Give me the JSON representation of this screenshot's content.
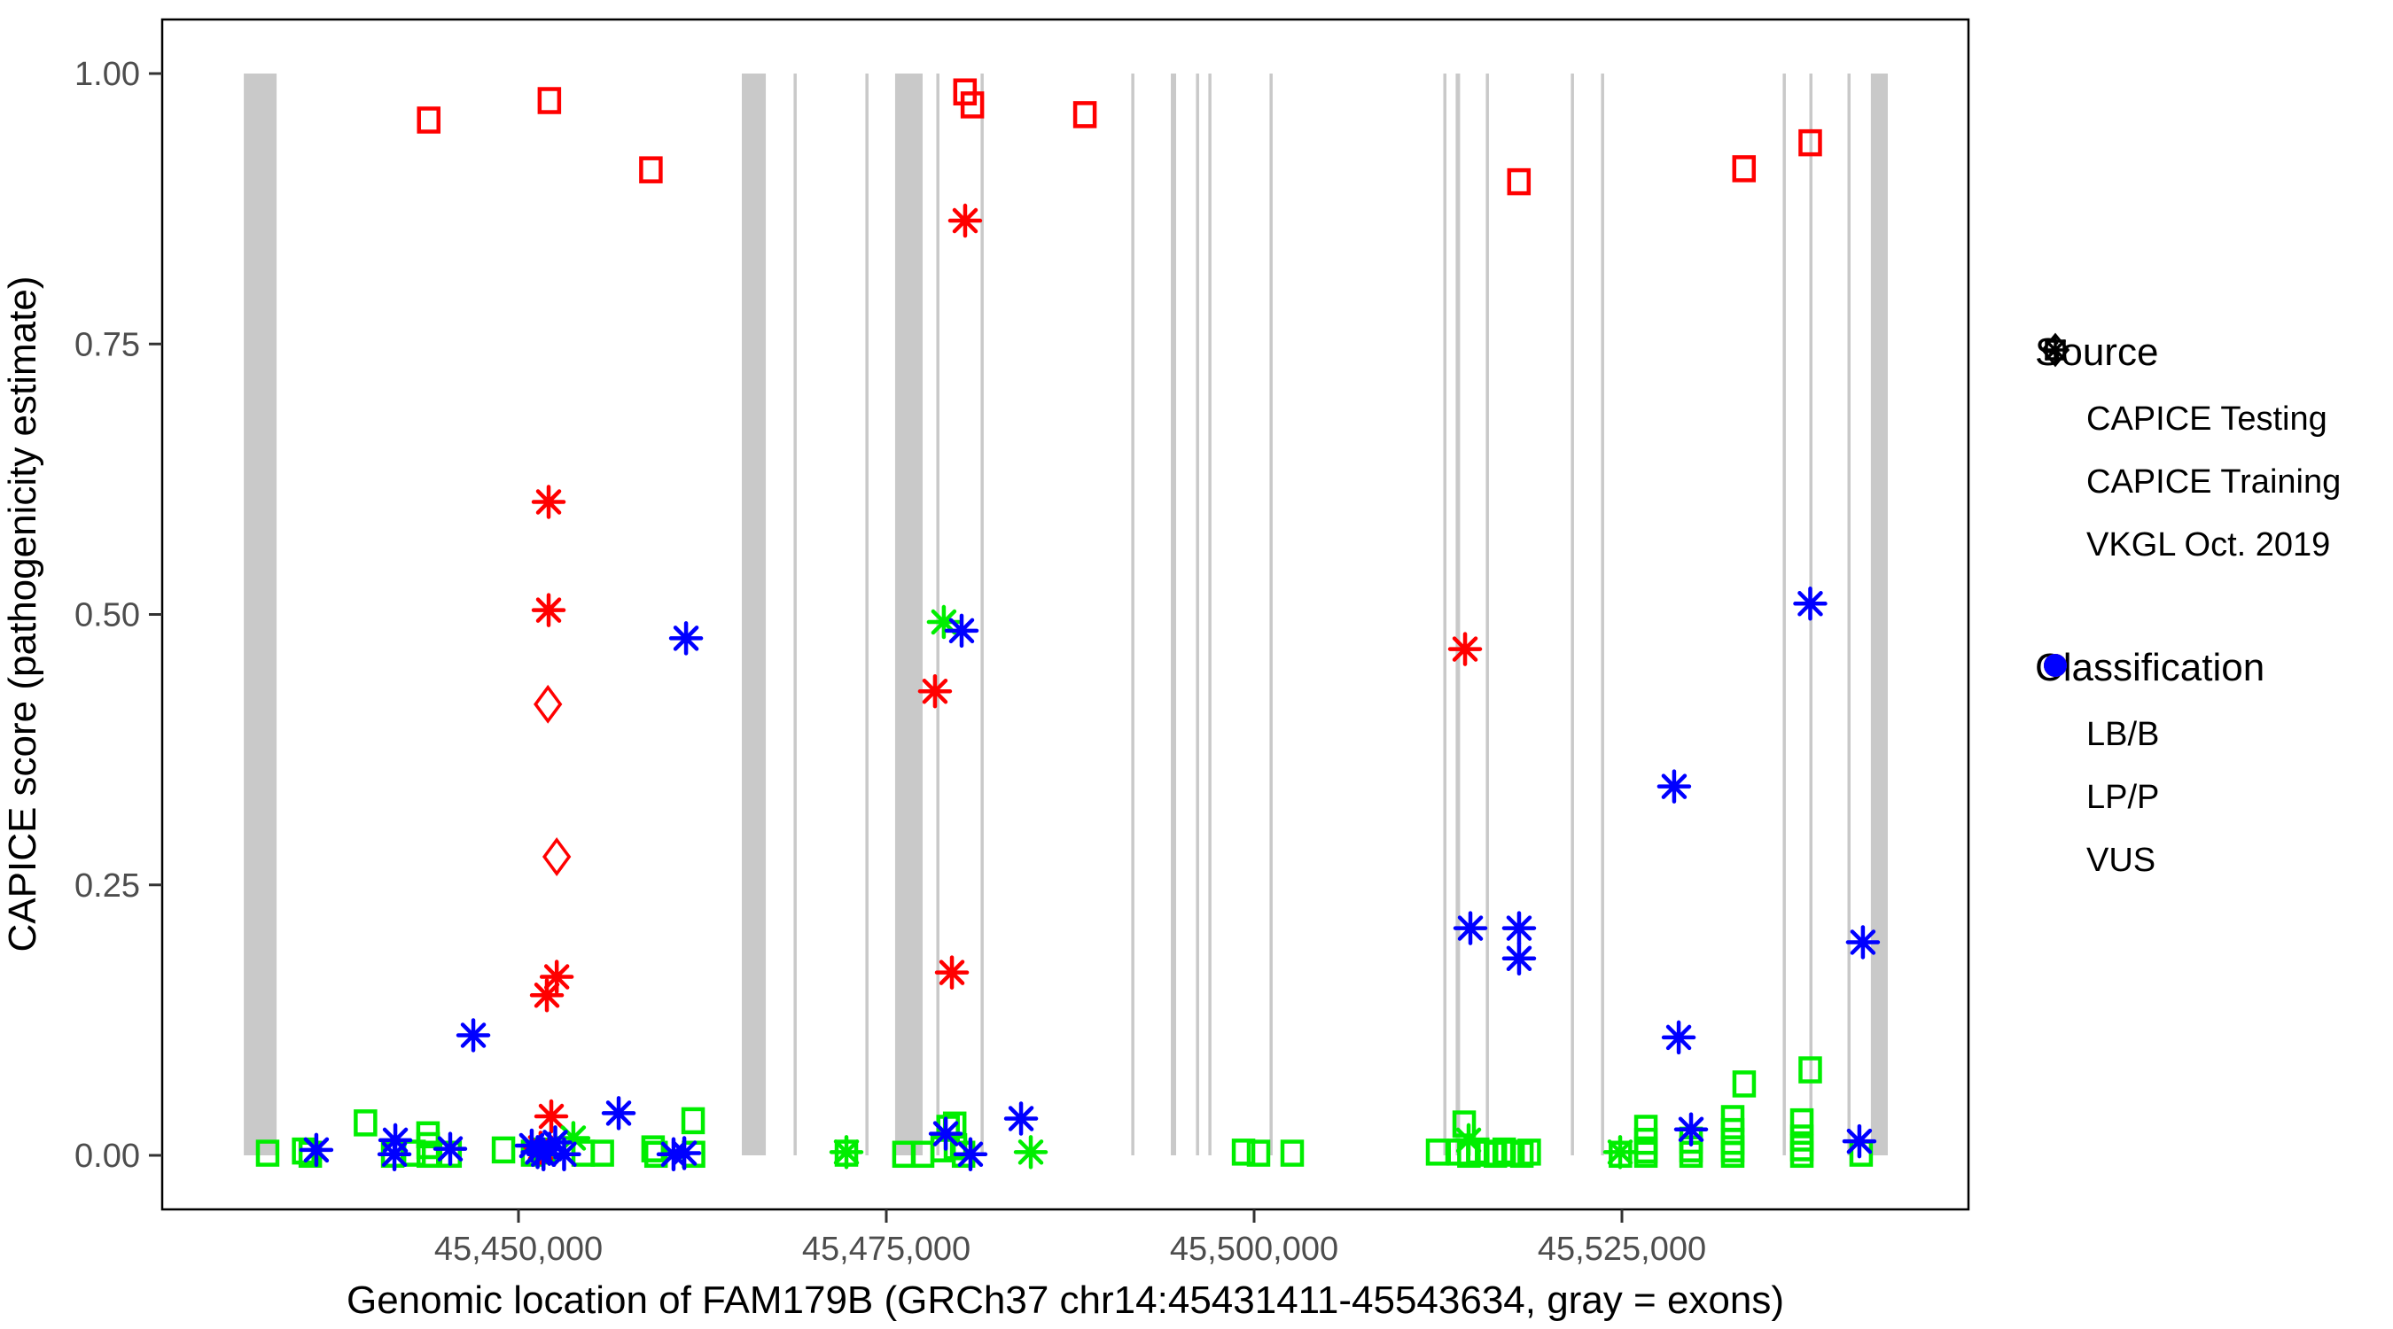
{
  "figure": {
    "x_axis": {
      "title": "Genomic location of FAM179B (GRCh37 chr14:45431411-45543634, gray = exons)",
      "ticks": [
        {
          "bp": 45450000,
          "label": "45,450,000"
        },
        {
          "bp": 45475000,
          "label": "45,475,000"
        },
        {
          "bp": 45500000,
          "label": "45,500,000"
        },
        {
          "bp": 45525000,
          "label": "45,525,000"
        }
      ],
      "range_bp": [
        45425800,
        45548600
      ]
    },
    "y_axis": {
      "title": "CAPICE score (pathogenicity estimate)",
      "ticks": [
        {
          "v": 0.0,
          "label": "0.00"
        },
        {
          "v": 0.25,
          "label": "0.25"
        },
        {
          "v": 0.5,
          "label": "0.50"
        },
        {
          "v": 0.75,
          "label": "0.75"
        },
        {
          "v": 1.0,
          "label": "1.00"
        }
      ],
      "range": [
        -0.05,
        1.05
      ]
    },
    "legend": {
      "source": {
        "title": "Source",
        "items": [
          {
            "label": "CAPICE Testing",
            "marker": "diamond-icon"
          },
          {
            "label": "CAPICE Training",
            "marker": "square-icon"
          },
          {
            "label": "VKGL Oct. 2019",
            "marker": "asterisk-icon"
          }
        ]
      },
      "classification": {
        "title": "Classification",
        "items": [
          {
            "label": "LB/B",
            "color": "#00EE00"
          },
          {
            "label": "LP/P",
            "color": "#FF0000"
          },
          {
            "label": "VUS",
            "color": "#0000FF"
          }
        ]
      }
    },
    "colors": {
      "LB/B": "#00EE00",
      "LP/P": "#FF0000",
      "VUS": "#0000FF",
      "exon": "#C9C9C9",
      "panel_border": "#000000",
      "tick_text": "#4D4D4D"
    }
  },
  "chart_data": {
    "type": "scatter",
    "title": "",
    "xlabel": "Genomic location of FAM179B (GRCh37 chr14:45431411-45543634, gray = exons)",
    "ylabel": "CAPICE score (pathogenicity estimate)",
    "x_range_bp": [
      45425800,
      45548600
    ],
    "y_range": [
      -0.05,
      1.05
    ],
    "grid": false,
    "legend_position": "right",
    "exons_bp": [
      [
        45431330,
        45433560
      ],
      [
        45465180,
        45466810
      ],
      [
        45468700,
        45468890
      ],
      [
        45473580,
        45473770
      ],
      [
        45475600,
        45477470
      ],
      [
        45478400,
        45478590
      ],
      [
        45481410,
        45481600
      ],
      [
        45491650,
        45491840
      ],
      [
        45494340,
        45494700
      ],
      [
        45496050,
        45496240
      ],
      [
        45496890,
        45497080
      ],
      [
        45501050,
        45501240
      ],
      [
        45512860,
        45513040
      ],
      [
        45513700,
        45514000
      ],
      [
        45515750,
        45515930
      ],
      [
        45521530,
        45521720
      ],
      [
        45523580,
        45523770
      ],
      [
        45535930,
        45536110
      ],
      [
        45537740,
        45537920
      ],
      [
        45540330,
        45540510
      ],
      [
        45541920,
        45543070
      ]
    ],
    "points": [
      {
        "source": "CAPICE Testing",
        "classification": "LP/P",
        "bp": 45452000,
        "score": 0.417
      },
      {
        "source": "CAPICE Testing",
        "classification": "LP/P",
        "bp": 45452600,
        "score": 0.276
      },
      {
        "source": "CAPICE Training",
        "classification": "LP/P",
        "bp": 45443900,
        "score": 0.957
      },
      {
        "source": "CAPICE Training",
        "classification": "LP/P",
        "bp": 45452100,
        "score": 0.975
      },
      {
        "source": "CAPICE Training",
        "classification": "LP/P",
        "bp": 45459000,
        "score": 0.911
      },
      {
        "source": "CAPICE Training",
        "classification": "LP/P",
        "bp": 45480350,
        "score": 0.983
      },
      {
        "source": "CAPICE Training",
        "classification": "LP/P",
        "bp": 45480850,
        "score": 0.971
      },
      {
        "source": "CAPICE Training",
        "classification": "LP/P",
        "bp": 45488500,
        "score": 0.962
      },
      {
        "source": "CAPICE Training",
        "classification": "LP/P",
        "bp": 45518000,
        "score": 0.9
      },
      {
        "source": "CAPICE Training",
        "classification": "LP/P",
        "bp": 45533300,
        "score": 0.912
      },
      {
        "source": "CAPICE Training",
        "classification": "LP/P",
        "bp": 45537800,
        "score": 0.936
      },
      {
        "source": "CAPICE Training",
        "classification": "LB/B",
        "bp": 45432950,
        "score": 0.002
      },
      {
        "source": "CAPICE Training",
        "classification": "LB/B",
        "bp": 45435400,
        "score": 0.004
      },
      {
        "source": "CAPICE Training",
        "classification": "LB/B",
        "bp": 45435850,
        "score": 0.001
      },
      {
        "source": "CAPICE Training",
        "classification": "LB/B",
        "bp": 45439600,
        "score": 0.03
      },
      {
        "source": "CAPICE Training",
        "classification": "LB/B",
        "bp": 45441450,
        "score": 0.001
      },
      {
        "source": "CAPICE Training",
        "classification": "LB/B",
        "bp": 45442900,
        "score": 0.002
      },
      {
        "source": "CAPICE Training",
        "classification": "LB/B",
        "bp": 45443850,
        "score": 0.019
      },
      {
        "source": "CAPICE Training",
        "classification": "LB/B",
        "bp": 45443860,
        "score": 0.009
      },
      {
        "source": "CAPICE Training",
        "classification": "LB/B",
        "bp": 45443870,
        "score": 0.001
      },
      {
        "source": "CAPICE Training",
        "classification": "LB/B",
        "bp": 45445350,
        "score": 0.001
      },
      {
        "source": "CAPICE Training",
        "classification": "LB/B",
        "bp": 45448980,
        "score": 0.005
      },
      {
        "source": "CAPICE Training",
        "classification": "LB/B",
        "bp": 45450960,
        "score": 0.002
      },
      {
        "source": "CAPICE Training",
        "classification": "LB/B",
        "bp": 45451750,
        "score": 0.004
      },
      {
        "source": "CAPICE Training",
        "classification": "LB/B",
        "bp": 45454400,
        "score": 0.002
      },
      {
        "source": "CAPICE Training",
        "classification": "LB/B",
        "bp": 45455700,
        "score": 0.002
      },
      {
        "source": "CAPICE Training",
        "classification": "LB/B",
        "bp": 45459150,
        "score": 0.006
      },
      {
        "source": "CAPICE Training",
        "classification": "LB/B",
        "bp": 45459350,
        "score": 0.001
      },
      {
        "source": "CAPICE Training",
        "classification": "LB/B",
        "bp": 45461870,
        "score": 0.032
      },
      {
        "source": "CAPICE Training",
        "classification": "LB/B",
        "bp": 45461900,
        "score": 0.001
      },
      {
        "source": "CAPICE Training",
        "classification": "LB/B",
        "bp": 45472290,
        "score": 0.002
      },
      {
        "source": "CAPICE Training",
        "classification": "LB/B",
        "bp": 45476200,
        "score": 0.001
      },
      {
        "source": "CAPICE Training",
        "classification": "LB/B",
        "bp": 45477470,
        "score": 0.001
      },
      {
        "source": "CAPICE Training",
        "classification": "LB/B",
        "bp": 45478800,
        "score": 0.006
      },
      {
        "source": "CAPICE Training",
        "classification": "LB/B",
        "bp": 45479200,
        "score": 0.025
      },
      {
        "source": "CAPICE Training",
        "classification": "LB/B",
        "bp": 45479650,
        "score": 0.028
      },
      {
        "source": "CAPICE Training",
        "classification": "LB/B",
        "bp": 45479700,
        "score": 0.008
      },
      {
        "source": "CAPICE Training",
        "classification": "LB/B",
        "bp": 45480250,
        "score": 0.001
      },
      {
        "source": "CAPICE Training",
        "classification": "LB/B",
        "bp": 45499280,
        "score": 0.003
      },
      {
        "source": "CAPICE Training",
        "classification": "LB/B",
        "bp": 45500300,
        "score": 0.002
      },
      {
        "source": "CAPICE Training",
        "classification": "LB/B",
        "bp": 45502590,
        "score": 0.002
      },
      {
        "source": "CAPICE Training",
        "classification": "LB/B",
        "bp": 45512470,
        "score": 0.003
      },
      {
        "source": "CAPICE Training",
        "classification": "LB/B",
        "bp": 45513900,
        "score": 0.003
      },
      {
        "source": "CAPICE Training",
        "classification": "LB/B",
        "bp": 45514280,
        "score": 0.029
      },
      {
        "source": "CAPICE Training",
        "classification": "LB/B",
        "bp": 45514600,
        "score": 0.001
      },
      {
        "source": "CAPICE Training",
        "classification": "LB/B",
        "bp": 45515200,
        "score": 0.004
      },
      {
        "source": "CAPICE Training",
        "classification": "LB/B",
        "bp": 45515800,
        "score": 0.002
      },
      {
        "source": "CAPICE Training",
        "classification": "LB/B",
        "bp": 45516400,
        "score": 0.001
      },
      {
        "source": "CAPICE Training",
        "classification": "LB/B",
        "bp": 45517000,
        "score": 0.004
      },
      {
        "source": "CAPICE Training",
        "classification": "LB/B",
        "bp": 45517600,
        "score": 0.002
      },
      {
        "source": "CAPICE Training",
        "classification": "LB/B",
        "bp": 45518200,
        "score": 0.001
      },
      {
        "source": "CAPICE Training",
        "classification": "LB/B",
        "bp": 45518700,
        "score": 0.003
      },
      {
        "source": "CAPICE Training",
        "classification": "LB/B",
        "bp": 45524900,
        "score": 0.001
      },
      {
        "source": "CAPICE Training",
        "classification": "LB/B",
        "bp": 45526630,
        "score": 0.025
      },
      {
        "source": "CAPICE Training",
        "classification": "LB/B",
        "bp": 45526630,
        "score": 0.013
      },
      {
        "source": "CAPICE Training",
        "classification": "LB/B",
        "bp": 45526630,
        "score": 0.005
      },
      {
        "source": "CAPICE Training",
        "classification": "LB/B",
        "bp": 45526630,
        "score": 0.001
      },
      {
        "source": "CAPICE Training",
        "classification": "LB/B",
        "bp": 45529700,
        "score": 0.014
      },
      {
        "source": "CAPICE Training",
        "classification": "LB/B",
        "bp": 45529700,
        "score": 0.006
      },
      {
        "source": "CAPICE Training",
        "classification": "LB/B",
        "bp": 45529700,
        "score": 0.001
      },
      {
        "source": "CAPICE Training",
        "classification": "LB/B",
        "bp": 45532530,
        "score": 0.034
      },
      {
        "source": "CAPICE Training",
        "classification": "LB/B",
        "bp": 45532530,
        "score": 0.022
      },
      {
        "source": "CAPICE Training",
        "classification": "LB/B",
        "bp": 45532530,
        "score": 0.013
      },
      {
        "source": "CAPICE Training",
        "classification": "LB/B",
        "bp": 45532530,
        "score": 0.006
      },
      {
        "source": "CAPICE Training",
        "classification": "LB/B",
        "bp": 45532530,
        "score": 0.001
      },
      {
        "source": "CAPICE Training",
        "classification": "LB/B",
        "bp": 45533310,
        "score": 0.066
      },
      {
        "source": "CAPICE Training",
        "classification": "LB/B",
        "bp": 45537230,
        "score": 0.031
      },
      {
        "source": "CAPICE Training",
        "classification": "LB/B",
        "bp": 45537230,
        "score": 0.016
      },
      {
        "source": "CAPICE Training",
        "classification": "LB/B",
        "bp": 45537230,
        "score": 0.007
      },
      {
        "source": "CAPICE Training",
        "classification": "LB/B",
        "bp": 45537230,
        "score": 0.001
      },
      {
        "source": "CAPICE Training",
        "classification": "LB/B",
        "bp": 45537800,
        "score": 0.079
      },
      {
        "source": "CAPICE Training",
        "classification": "LB/B",
        "bp": 45541260,
        "score": 0.002
      },
      {
        "source": "VKGL Oct. 2019",
        "classification": "LP/P",
        "bp": 45452050,
        "score": 0.604
      },
      {
        "source": "VKGL Oct. 2019",
        "classification": "LP/P",
        "bp": 45452050,
        "score": 0.504
      },
      {
        "source": "VKGL Oct. 2019",
        "classification": "LP/P",
        "bp": 45452600,
        "score": 0.165
      },
      {
        "source": "VKGL Oct. 2019",
        "classification": "LP/P",
        "bp": 45451930,
        "score": 0.148
      },
      {
        "source": "VKGL Oct. 2019",
        "classification": "LP/P",
        "bp": 45452230,
        "score": 0.036
      },
      {
        "source": "VKGL Oct. 2019",
        "classification": "LP/P",
        "bp": 45451500,
        "score": 0.007
      },
      {
        "source": "VKGL Oct. 2019",
        "classification": "LP/P",
        "bp": 45480360,
        "score": 0.864
      },
      {
        "source": "VKGL Oct. 2019",
        "classification": "LP/P",
        "bp": 45479460,
        "score": 0.169
      },
      {
        "source": "VKGL Oct. 2019",
        "classification": "LP/P",
        "bp": 45478310,
        "score": 0.429
      },
      {
        "source": "VKGL Oct. 2019",
        "classification": "LP/P",
        "bp": 45514340,
        "score": 0.468
      },
      {
        "source": "VKGL Oct. 2019",
        "classification": "LB/B",
        "bp": 45453730,
        "score": 0.016
      },
      {
        "source": "VKGL Oct. 2019",
        "classification": "LB/B",
        "bp": 45472290,
        "score": 0.003
      },
      {
        "source": "VKGL Oct. 2019",
        "classification": "LB/B",
        "bp": 45478910,
        "score": 0.493
      },
      {
        "source": "VKGL Oct. 2019",
        "classification": "LB/B",
        "bp": 45484820,
        "score": 0.003
      },
      {
        "source": "VKGL Oct. 2019",
        "classification": "LB/B",
        "bp": 45514580,
        "score": 0.014
      },
      {
        "source": "VKGL Oct. 2019",
        "classification": "LB/B",
        "bp": 45524880,
        "score": 0.003
      },
      {
        "source": "VKGL Oct. 2019",
        "classification": "VUS",
        "bp": 45436260,
        "score": 0.005
      },
      {
        "source": "VKGL Oct. 2019",
        "classification": "VUS",
        "bp": 45441630,
        "score": 0.014
      },
      {
        "source": "VKGL Oct. 2019",
        "classification": "VUS",
        "bp": 45441570,
        "score": 0.001
      },
      {
        "source": "VKGL Oct. 2019",
        "classification": "VUS",
        "bp": 45445360,
        "score": 0.006
      },
      {
        "source": "VKGL Oct. 2019",
        "classification": "VUS",
        "bp": 45446930,
        "score": 0.111
      },
      {
        "source": "VKGL Oct. 2019",
        "classification": "VUS",
        "bp": 45450900,
        "score": 0.009
      },
      {
        "source": "VKGL Oct. 2019",
        "classification": "VUS",
        "bp": 45451300,
        "score": 0.003
      },
      {
        "source": "VKGL Oct. 2019",
        "classification": "VUS",
        "bp": 45451700,
        "score": 0.001
      },
      {
        "source": "VKGL Oct. 2019",
        "classification": "VUS",
        "bp": 45452100,
        "score": 0.006
      },
      {
        "source": "VKGL Oct. 2019",
        "classification": "VUS",
        "bp": 45452500,
        "score": 0.012
      },
      {
        "source": "VKGL Oct. 2019",
        "classification": "VUS",
        "bp": 45453100,
        "score": 0.001
      },
      {
        "source": "VKGL Oct. 2019",
        "classification": "VUS",
        "bp": 45456810,
        "score": 0.039
      },
      {
        "source": "VKGL Oct. 2019",
        "classification": "VUS",
        "bp": 45460540,
        "score": 0.001
      },
      {
        "source": "VKGL Oct. 2019",
        "classification": "VUS",
        "bp": 45461270,
        "score": 0.002
      },
      {
        "source": "VKGL Oct. 2019",
        "classification": "VUS",
        "bp": 45461390,
        "score": 0.478
      },
      {
        "source": "VKGL Oct. 2019",
        "classification": "VUS",
        "bp": 45479040,
        "score": 0.02
      },
      {
        "source": "VKGL Oct. 2019",
        "classification": "VUS",
        "bp": 45480120,
        "score": 0.485
      },
      {
        "source": "VKGL Oct. 2019",
        "classification": "VUS",
        "bp": 45480720,
        "score": 0.001
      },
      {
        "source": "VKGL Oct. 2019",
        "classification": "VUS",
        "bp": 45484160,
        "score": 0.034
      },
      {
        "source": "VKGL Oct. 2019",
        "classification": "VUS",
        "bp": 45514700,
        "score": 0.21
      },
      {
        "source": "VKGL Oct. 2019",
        "classification": "VUS",
        "bp": 45518010,
        "score": 0.21
      },
      {
        "source": "VKGL Oct. 2019",
        "classification": "VUS",
        "bp": 45518010,
        "score": 0.182
      },
      {
        "source": "VKGL Oct. 2019",
        "classification": "VUS",
        "bp": 45528550,
        "score": 0.341
      },
      {
        "source": "VKGL Oct. 2019",
        "classification": "VUS",
        "bp": 45528860,
        "score": 0.109
      },
      {
        "source": "VKGL Oct. 2019",
        "classification": "VUS",
        "bp": 45529700,
        "score": 0.024
      },
      {
        "source": "VKGL Oct. 2019",
        "classification": "VUS",
        "bp": 45537800,
        "score": 0.51
      },
      {
        "source": "VKGL Oct. 2019",
        "classification": "VUS",
        "bp": 45541380,
        "score": 0.197
      },
      {
        "source": "VKGL Oct. 2019",
        "classification": "VUS",
        "bp": 45541140,
        "score": 0.013
      }
    ]
  }
}
